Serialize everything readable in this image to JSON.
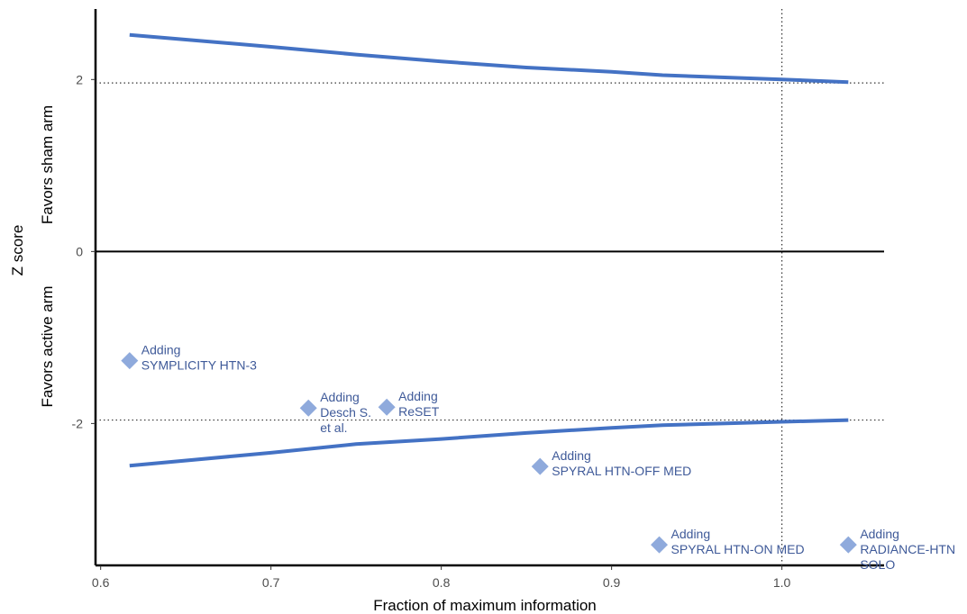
{
  "chart_data": {
    "type": "scatter",
    "xlabel": "Fraction of maximum information",
    "ylabel": "Z score",
    "ylabel_upper": "Favors sham arm",
    "ylabel_lower": "Favors active arm",
    "xlim": [
      0.597,
      1.06
    ],
    "ylim": [
      -3.65,
      2.82
    ],
    "x_ticks": [
      0.6,
      0.7,
      0.8,
      0.9,
      1.0
    ],
    "x_tick_labels": [
      "0.6",
      "0.7",
      "0.8",
      "0.9",
      "1.0"
    ],
    "y_ticks": [
      2,
      0,
      -2
    ],
    "y_tick_labels": [
      "2",
      "0",
      "-2"
    ],
    "reference_lines": {
      "horizontal_dotted": [
        1.96,
        -1.96
      ],
      "vertical_dotted": [
        1.0
      ],
      "zero_line": 0
    },
    "boundaries": [
      {
        "x": [
          0.617,
          0.7,
          0.75,
          0.8,
          0.85,
          0.9,
          0.93,
          1.0,
          1.039
        ],
        "y": [
          2.52,
          2.38,
          2.29,
          2.21,
          2.14,
          2.09,
          2.05,
          2.0,
          1.97
        ]
      },
      {
        "x": [
          0.617,
          0.7,
          0.75,
          0.8,
          0.85,
          0.9,
          0.93,
          1.0,
          1.039
        ],
        "y": [
          -2.49,
          -2.34,
          -2.24,
          -2.18,
          -2.11,
          -2.05,
          -2.02,
          -1.98,
          -1.96
        ]
      }
    ],
    "points": [
      {
        "x": 0.617,
        "y": -1.27,
        "label": [
          "Adding",
          "SYMPLICITY HTN-3"
        ]
      },
      {
        "x": 0.722,
        "y": -1.82,
        "label": [
          "Adding",
          "Desch S.",
          "et al."
        ]
      },
      {
        "x": 0.768,
        "y": -1.81,
        "label": [
          "Adding",
          "ReSET"
        ]
      },
      {
        "x": 0.858,
        "y": -2.5,
        "label": [
          "Adding",
          "SPYRAL HTN-OFF MED"
        ]
      },
      {
        "x": 0.928,
        "y": -3.41,
        "label": [
          "Adding",
          "SPYRAL HTN-ON MED"
        ]
      },
      {
        "x": 1.039,
        "y": -3.41,
        "label": [
          "Adding",
          "RADIANCE-HTN",
          "SOLO"
        ]
      }
    ],
    "colors": {
      "boundary_line": "#4472c4",
      "marker": "#8faadc",
      "annotation": "#3f5a99",
      "axis": "#000000",
      "reference": "#333333"
    }
  }
}
